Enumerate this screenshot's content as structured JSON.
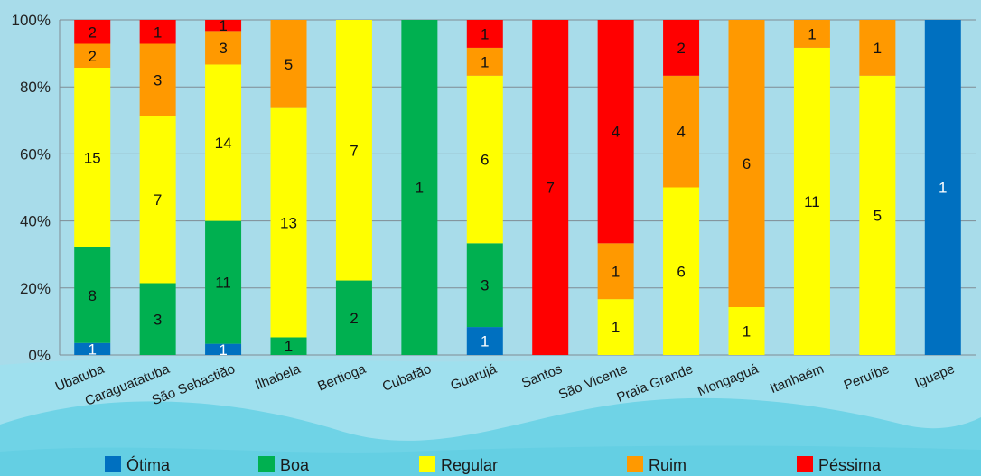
{
  "chart_data": {
    "type": "bar",
    "stacked": true,
    "normalized": true,
    "categories": [
      "Ubatuba",
      "Caraguatatuba",
      "São Sebastião",
      "Ilhabela",
      "Bertioga",
      "Cubatão",
      "Guarujá",
      "Santos",
      "São Vicente",
      "Praia Grande",
      "Mongaguá",
      "Itanhaém",
      "Peruíbe",
      "Iguape"
    ],
    "series": [
      {
        "name": "Ótima",
        "color": "#0070c0",
        "values": [
          1,
          0,
          1,
          0,
          0,
          0,
          1,
          0,
          0,
          0,
          0,
          0,
          0,
          1
        ]
      },
      {
        "name": "Boa",
        "color": "#00b050",
        "values": [
          8,
          3,
          11,
          1,
          2,
          1,
          3,
          0,
          0,
          0,
          0,
          0,
          0,
          0
        ]
      },
      {
        "name": "Regular",
        "color": "#ffff00",
        "values": [
          15,
          7,
          14,
          13,
          7,
          0,
          6,
          0,
          1,
          6,
          1,
          11,
          5,
          0
        ]
      },
      {
        "name": "Ruim",
        "color": "#ff9900",
        "values": [
          2,
          3,
          3,
          5,
          0,
          0,
          1,
          0,
          1,
          4,
          6,
          1,
          1,
          0
        ]
      },
      {
        "name": "Péssima",
        "color": "#ff0000",
        "values": [
          2,
          1,
          1,
          0,
          0,
          0,
          1,
          7,
          4,
          2,
          0,
          0,
          0,
          0
        ]
      }
    ],
    "yticks": [
      "0%",
      "20%",
      "40%",
      "60%",
      "80%",
      "100%"
    ],
    "ylim": [
      0,
      100
    ],
    "grid": true,
    "legend": "bottom",
    "title": "",
    "xlabel": "",
    "ylabel": ""
  }
}
